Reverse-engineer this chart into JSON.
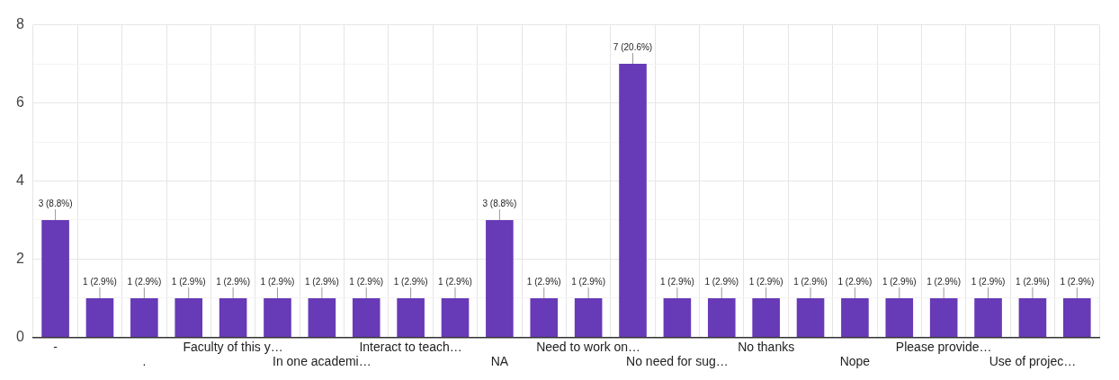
{
  "chart_data": {
    "type": "bar",
    "categories": [
      "-",
      null,
      ".",
      null,
      "Faculty of this y…",
      null,
      "In one academi…",
      null,
      "Interact to teach…",
      null,
      "NA",
      null,
      "Need to work on…",
      null,
      "No need for sug…",
      null,
      "No thanks",
      null,
      "Nope",
      null,
      "Please provide…",
      null,
      "Use of projec…",
      null
    ],
    "values": [
      3,
      1,
      1,
      1,
      1,
      1,
      1,
      1,
      1,
      1,
      3,
      1,
      1,
      7,
      1,
      1,
      1,
      1,
      1,
      1,
      1,
      1,
      1,
      1
    ],
    "value_labels": [
      "3 (8.8%)",
      "1 (2.9%)",
      "1 (2.9%)",
      "1 (2.9%)",
      "1 (2.9%)",
      "1 (2.9%)",
      "1 (2.9%)",
      "1 (2.9%)",
      "1 (2.9%)",
      "1 (2.9%)",
      "3 (8.8%)",
      "1 (2.9%)",
      "1 (2.9%)",
      "7 (20.6%)",
      "1 (2.9%)",
      "1 (2.9%)",
      "1 (2.9%)",
      "1 (2.9%)",
      "1 (2.9%)",
      "1 (2.9%)",
      "1 (2.9%)",
      "1 (2.9%)",
      "1 (2.9%)",
      "1 (2.9%)"
    ],
    "color": "#673ab7",
    "ylim": [
      0,
      8
    ],
    "yticks": [
      0,
      {
        "value": 1,
        "label": null
      },
      2,
      {
        "value": 3,
        "label": null
      },
      4,
      {
        "value": 5,
        "label": null
      },
      6,
      {
        "value": 7,
        "label": null
      },
      8
    ],
    "grid": true,
    "legend": false
  }
}
